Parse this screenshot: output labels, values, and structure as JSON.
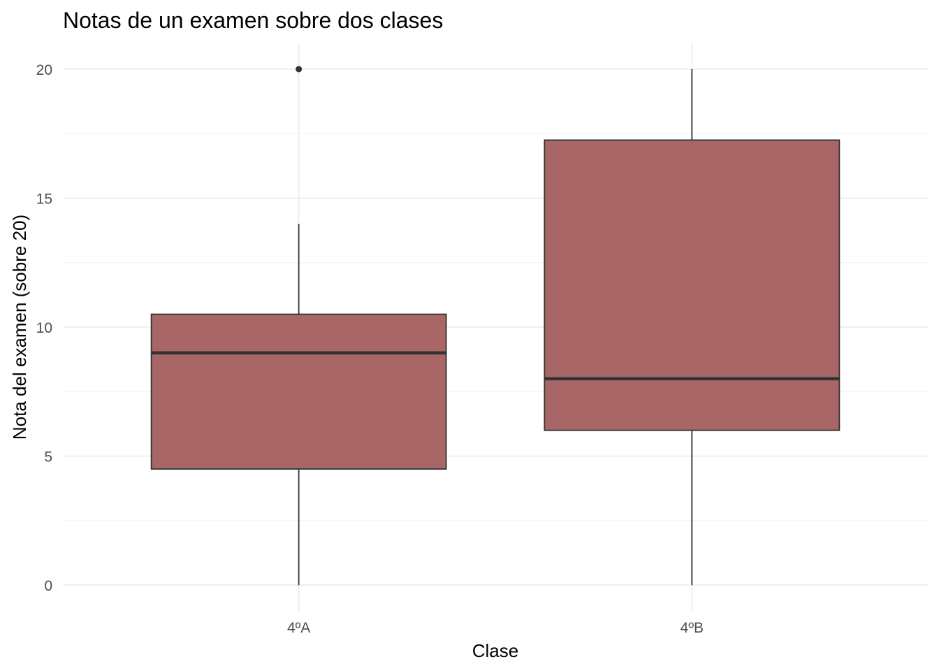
{
  "chart_data": {
    "type": "boxplot",
    "title": "Notas de un examen sobre dos clases",
    "xlabel": "Clase",
    "ylabel": "Nota del examen (sobre 20)",
    "categories": [
      "4ºA",
      "4ºB"
    ],
    "ylim": [
      -1,
      21
    ],
    "yticks": [
      0,
      5,
      10,
      15,
      20
    ],
    "grid": true,
    "fill_color": "#a86666",
    "line_color": "#333333",
    "boxes": [
      {
        "category": "4ºA",
        "min": 0,
        "q1": 4.5,
        "median": 9,
        "q3": 10.5,
        "max": 14,
        "outliers": [
          20
        ]
      },
      {
        "category": "4ºB",
        "min": 0,
        "q1": 6,
        "median": 8,
        "q3": 17.25,
        "max": 20,
        "outliers": []
      }
    ]
  }
}
